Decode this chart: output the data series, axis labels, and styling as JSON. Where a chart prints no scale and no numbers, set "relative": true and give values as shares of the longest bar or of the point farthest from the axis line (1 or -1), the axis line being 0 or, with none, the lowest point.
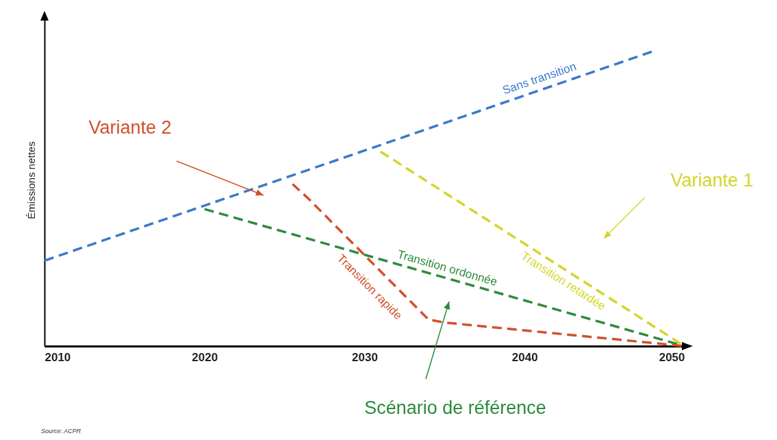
{
  "chart_data": {
    "type": "line",
    "relative": true,
    "ylabel": "Émissions nettes",
    "xlim": [
      2010,
      2050
    ],
    "xticks": [
      2010,
      2020,
      2030,
      2040,
      2050
    ],
    "line_style": "dashed",
    "grid": false,
    "series": [
      {
        "name": "Sans transition",
        "color": "#3a7ac8",
        "x": [
          2010,
          2048
        ],
        "values": [
          0.29,
          1
        ]
      },
      {
        "name": "Transition ordonnée",
        "color": "#2e8b3a",
        "x": [
          2020,
          2050
        ],
        "values": [
          0.465,
          0
        ]
      },
      {
        "name": "Transition rapide",
        "color": "#d0502a",
        "x": [
          2025.5,
          2026.5,
          2034,
          2035,
          2050
        ],
        "values": [
          0.55,
          0.5,
          0.09,
          0.08,
          0
        ]
      },
      {
        "name": "Transition retardée",
        "color": "#d4d42a",
        "x": [
          2031,
          2050
        ],
        "values": [
          0.66,
          0
        ]
      }
    ],
    "annotations": [
      "Variante 2",
      "Variante 1",
      "Scénario de référence",
      "Source: ACPR"
    ]
  }
}
